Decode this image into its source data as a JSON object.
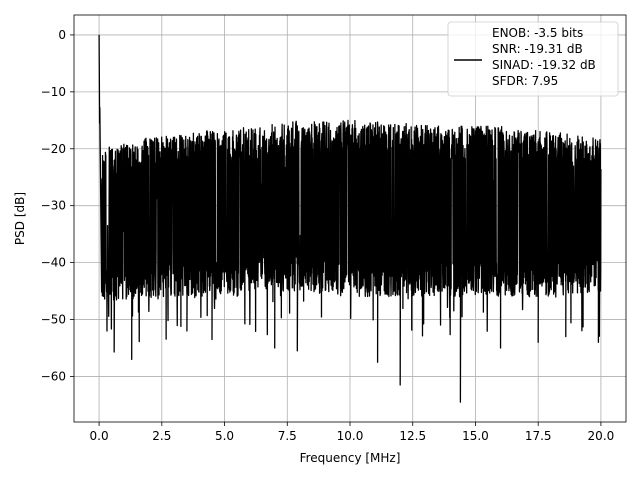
{
  "chart_data": {
    "type": "line",
    "xlabel": "Frequency [MHz]",
    "ylabel": "PSD [dB]",
    "xlim": [
      -1.0,
      21.0
    ],
    "ylim": [
      -68,
      3.5
    ],
    "xticks": [
      0.0,
      2.5,
      5.0,
      7.5,
      10.0,
      12.5,
      15.0,
      17.5,
      20.0
    ],
    "xtick_labels": [
      "0.0",
      "2.5",
      "5.0",
      "7.5",
      "10.0",
      "12.5",
      "15.0",
      "17.5",
      "20.0"
    ],
    "yticks": [
      0,
      -10,
      -20,
      -30,
      -40,
      -50,
      -60
    ],
    "ytick_labels": [
      "0",
      "−10",
      "−20",
      "−30",
      "−40",
      "−50",
      "−60"
    ],
    "grid": true,
    "legend_position": "top-right",
    "series": [
      {
        "color": "#000000",
        "legend_lines": [
          "ENOB: -3.5 bits",
          "SNR: -19.31 dB",
          "SINAD: -19.32 dB",
          "SFDR: 7.95"
        ],
        "peaks": [
          [
            0.0,
            0.0
          ],
          [
            0.02,
            -15.5
          ],
          [
            0.03,
            -12.8
          ]
        ],
        "envelope": {
          "x": [
            0.1,
            2.0,
            4.0,
            6.0,
            8.0,
            10.0,
            12.0,
            14.0,
            16.0,
            18.0,
            20.0
          ],
          "upper": [
            -20,
            -18,
            -17,
            -16,
            -15,
            -15,
            -15.5,
            -16,
            -16,
            -17,
            -18
          ],
          "lower": [
            -47,
            -46,
            -46,
            -45,
            -45,
            -46,
            -46,
            -46,
            -46,
            -46,
            -45
          ]
        },
        "deep_dips": [
          [
            0.6,
            -55.7
          ],
          [
            1.3,
            -57.0
          ],
          [
            3.5,
            -52.0
          ],
          [
            4.5,
            -53.5
          ],
          [
            7.0,
            -55.0
          ],
          [
            7.9,
            -55.5
          ],
          [
            11.1,
            -57.5
          ],
          [
            12.0,
            -61.5
          ],
          [
            14.4,
            -64.5
          ],
          [
            16.0,
            -55.0
          ],
          [
            17.5,
            -54.0
          ],
          [
            18.6,
            -53.0
          ],
          [
            19.9,
            -54.0
          ]
        ]
      }
    ]
  }
}
